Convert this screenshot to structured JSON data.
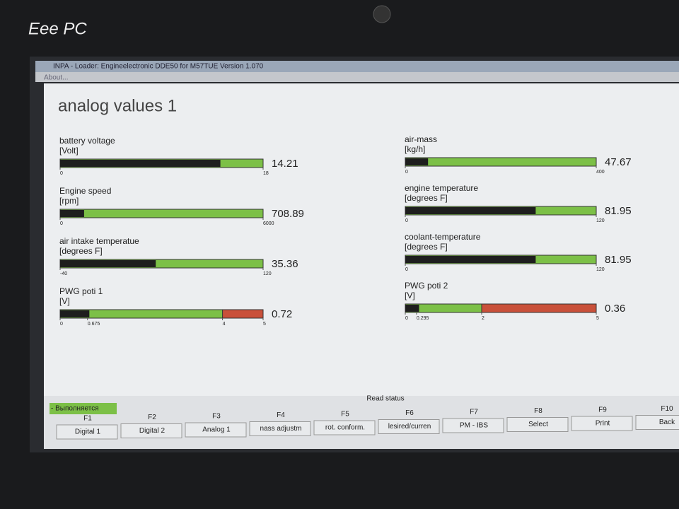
{
  "bezel": {
    "brand": "Eee PC"
  },
  "window": {
    "title": "INPA - Loader: Engineelectronic DDE50 for M57TUE Version 1.070",
    "menu": "About..."
  },
  "heading": "analog values 1",
  "gauges": {
    "left": [
      {
        "label": "battery voltage",
        "unit": "[Volt]",
        "value": 14.21,
        "ticks": [
          0,
          18
        ]
      },
      {
        "label": "Engine speed",
        "unit": "[rpm]",
        "value": 708.89,
        "ticks": [
          0,
          6000
        ]
      },
      {
        "label": "air intake temperatue",
        "unit": "[degrees F]",
        "value": 35.36,
        "ticks": [
          -40,
          120
        ]
      },
      {
        "label": "PWG poti 1",
        "unit": "[V]",
        "value": 0.72,
        "ticks": [
          0,
          0.675,
          4,
          5
        ]
      }
    ],
    "right": [
      {
        "label": "air-mass",
        "unit": "[kg/h]",
        "value": 47.67,
        "ticks": [
          0,
          400
        ]
      },
      {
        "label": "engine temperature",
        "unit": "[degrees F]",
        "value": 81.95,
        "ticks": [
          0,
          120
        ]
      },
      {
        "label": "coolant-temperature",
        "unit": "[degrees F]",
        "value": 81.95,
        "ticks": [
          0,
          120
        ]
      },
      {
        "label": "PWG poti 2",
        "unit": "[V]",
        "value": 0.36,
        "ticks": [
          0,
          0.295,
          2,
          5
        ]
      }
    ]
  },
  "status": {
    "running": "- Выполняется",
    "group": "Read status"
  },
  "fkeys": [
    {
      "key": "F1",
      "label": "Digital 1"
    },
    {
      "key": "F2",
      "label": "Digital 2"
    },
    {
      "key": "F3",
      "label": "Analog 1"
    },
    {
      "key": "F4",
      "label": "nass adjustm"
    },
    {
      "key": "F5",
      "label": "rot. conform."
    },
    {
      "key": "F6",
      "label": "lesired/curren"
    },
    {
      "key": "F7",
      "label": "PM - IBS"
    },
    {
      "key": "F8",
      "label": "Select"
    },
    {
      "key": "F9",
      "label": "Print"
    },
    {
      "key": "F10",
      "label": "Back"
    }
  ]
}
